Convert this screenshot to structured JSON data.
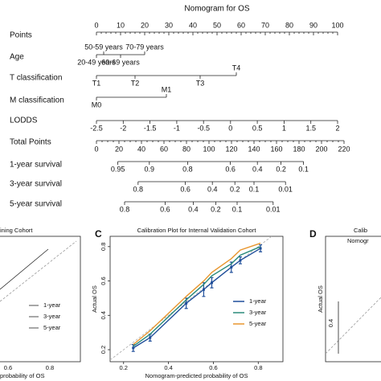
{
  "nomogram": {
    "title": "Nomogram for OS",
    "points": {
      "label": "Points",
      "ticks": [
        0,
        10,
        20,
        30,
        40,
        50,
        60,
        70,
        80,
        90,
        100
      ]
    },
    "variables": [
      {
        "label": "Age",
        "levels": [
          "20-49 years",
          "50-59 years",
          "60-69 years",
          "70-79 years"
        ],
        "points": [
          0,
          3,
          10,
          20
        ]
      },
      {
        "label": "T classification",
        "levels": [
          "T1",
          "T2",
          "T3",
          "T4"
        ],
        "points": [
          0,
          16,
          43,
          58
        ]
      },
      {
        "label": "M classification",
        "levels": [
          "M0",
          "M1"
        ],
        "points": [
          0,
          29
        ]
      },
      {
        "label": "LODDS",
        "levels": [
          -2.5,
          -2,
          -1.5,
          -1,
          -0.5,
          0,
          0.5,
          1,
          1.5,
          2
        ],
        "points": [
          0,
          11.1,
          22.2,
          33.3,
          44.4,
          55.6,
          66.7,
          77.8,
          88.9,
          100
        ]
      }
    ],
    "total_points": {
      "label": "Total Points",
      "ticks": [
        0,
        20,
        40,
        60,
        80,
        100,
        120,
        140,
        160,
        180,
        200,
        220
      ]
    },
    "survival": [
      {
        "label": "1-year survival",
        "levels": [
          0.95,
          0.9,
          0.8,
          0.6,
          0.4,
          0.2,
          0.1
        ],
        "total_points": [
          19,
          47,
          81,
          119,
          143,
          164,
          184
        ]
      },
      {
        "label": "3-year survival",
        "levels": [
          0.8,
          0.6,
          0.4,
          0.2,
          0.1,
          0.01
        ],
        "total_points": [
          37,
          79,
          103,
          123,
          140,
          168
        ]
      },
      {
        "label": "5-year survival",
        "levels": [
          0.8,
          0.6,
          0.4,
          0.2,
          0.1,
          0.01
        ],
        "total_points": [
          25,
          61,
          86,
          106,
          125,
          157
        ]
      }
    ]
  },
  "panel_b": {
    "title": "ining Cohort",
    "x_label": "probability of OS",
    "legend": [
      "1-year",
      "3-year",
      "5-year"
    ],
    "xticks": [
      "0.6",
      "0.8"
    ]
  },
  "panel_d": {
    "panel_label": "D",
    "title": "Calib",
    "x_label": "Nomogr",
    "y_label": "Actual OS",
    "ytick": "0.4"
  },
  "chart_data": {
    "type": "line",
    "panel_label": "C",
    "title": "Calibration Plot for Internal Validation Cohort",
    "x_label": "Nomogram-predicted probability of OS",
    "y_label": "Actual OS",
    "x": [
      0.243,
      0.318,
      0.479,
      0.557,
      0.593,
      0.68,
      0.72,
      0.81
    ],
    "series": [
      {
        "name": "1-year",
        "color": "#1f4e9a",
        "values": [
          0.21,
          0.27,
          0.47,
          0.55,
          0.59,
          0.68,
          0.72,
          0.79
        ],
        "errors": [
          0.02,
          0.02,
          0.03,
          0.04,
          0.03,
          0.03,
          0.02,
          0.02
        ]
      },
      {
        "name": "3-year",
        "color": "#2a8a7a",
        "values": [
          0.22,
          0.29,
          0.49,
          0.58,
          0.63,
          0.7,
          0.75,
          0.8
        ]
      },
      {
        "name": "5-year",
        "color": "#e8962e",
        "values": [
          0.23,
          0.31,
          0.51,
          0.6,
          0.65,
          0.73,
          0.78,
          0.82
        ]
      }
    ],
    "xlim": [
      0.14,
      0.91
    ],
    "xticks": [
      0.2,
      0.4,
      0.6,
      0.8
    ],
    "ylim": [
      0.13,
      0.86
    ],
    "yticks": [
      0.2,
      0.4,
      0.6,
      0.8
    ],
    "diagonal": true,
    "legend": "lower right"
  }
}
